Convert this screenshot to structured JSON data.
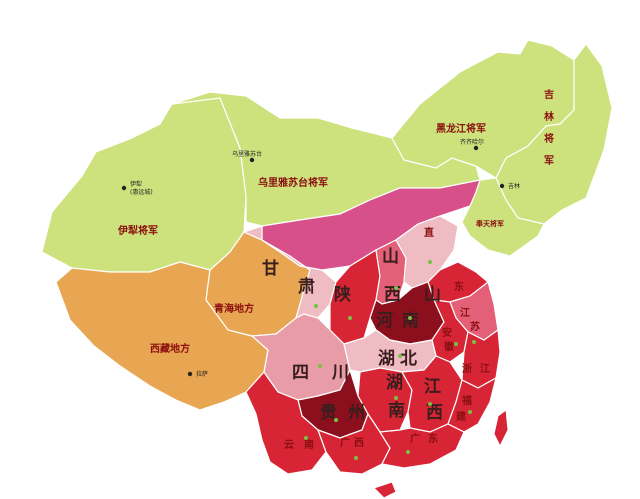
{
  "map": {
    "colors": {
      "frontier_green": "#cde17c",
      "tibet_orange": "#e8a552",
      "pale_pink": "#f0bcc4",
      "magenta": "#d8508a",
      "red": "#d72535",
      "dark_red": "#8c0f1e",
      "mid_red": "#e46078",
      "rose": "#e79ca8",
      "border": "#ffffff",
      "label_red": "#8a1010",
      "label_dark": "#3a1d1d"
    },
    "regions": {
      "heilongjiang": "黑龙江将军",
      "jilin": "吉林将军",
      "fengtian": "奉天将军",
      "uliastai": "乌里雅苏台将军",
      "ili": "伊犁将军",
      "qinghai": "青海地方",
      "tibet": "西藏地方"
    },
    "provinces": {
      "gansu": "甘肃",
      "zhili": "直",
      "shanxi": "山西",
      "shaanxi": "陕西",
      "shandong": "山东",
      "henan": "河南",
      "jiangsu": "江苏",
      "anhui": "安徽",
      "zhejiang": "浙江",
      "sichuan": "四川",
      "hubei": "湖北",
      "hunan": "湖南",
      "jiangxi": "江西",
      "fujian": "福建",
      "guizhou": "贵州",
      "yunnan": "云南",
      "guangxi": "广西",
      "guangdong": "广东"
    },
    "chars": {
      "gan": "甘",
      "su": "肃",
      "zhi": "直",
      "shan": "山",
      "xi": "西",
      "shaan": "陕",
      "shan_sd": "山",
      "dong": "东",
      "he": "河",
      "nan_hn": "南",
      "jiang": "江",
      "su_js": "苏",
      "an": "安",
      "hui": "徽",
      "zhe": "浙",
      "jiang_zj": "江",
      "si": "四",
      "chuan": "川",
      "hu": "湖",
      "bei": "北",
      "hu_hn": "湖",
      "nan": "南",
      "jiang_jx": "江",
      "xi_jx": "西",
      "fu": "福",
      "jian": "建",
      "gui": "贵",
      "zhou": "州",
      "yun": "云",
      "nan_yn": "南",
      "guang": "广",
      "xi_gx": "西",
      "guang_gd": "广",
      "dong_gd": "东"
    },
    "cities": {
      "uliastai_city": "乌里雅苏台",
      "qiqihar": "齐齐哈尔",
      "jilin_city": "吉林",
      "ili_city": "伊犁",
      "huiyuan": "(惠远城)",
      "lhasa": "拉萨"
    }
  }
}
